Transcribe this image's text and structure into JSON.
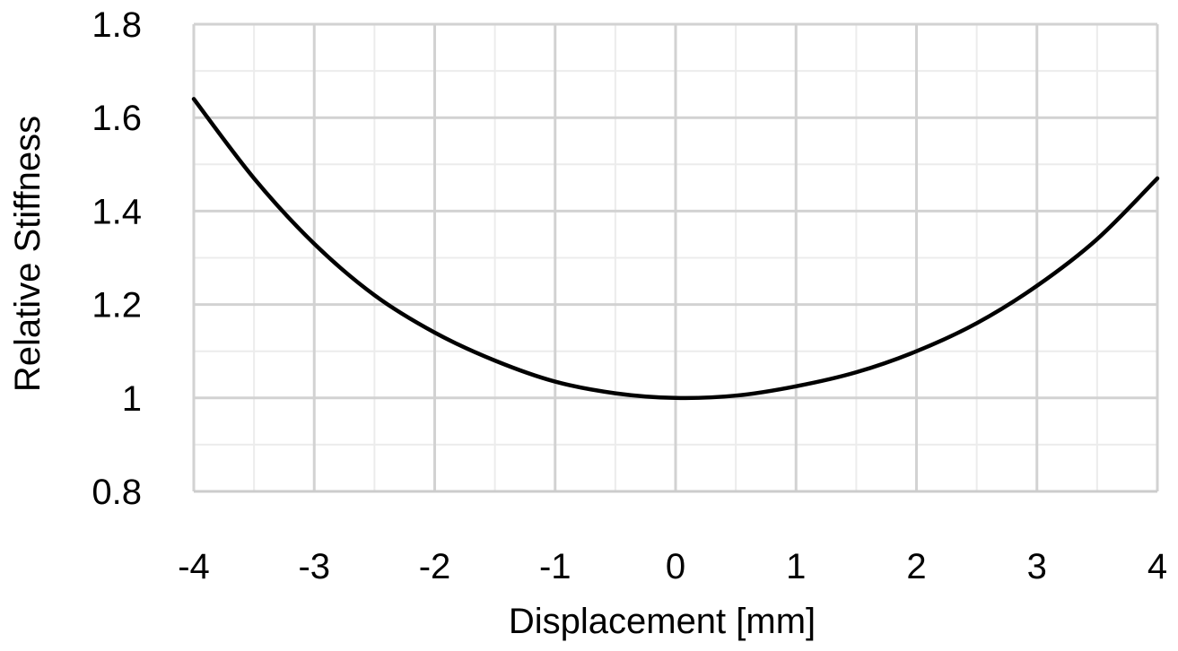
{
  "chart_data": {
    "type": "line",
    "title": "",
    "xlabel": "Displacement [mm]",
    "ylabel": "Relative Stiffness",
    "xlim": [
      -4,
      4
    ],
    "ylim": [
      0.8,
      1.8
    ],
    "x_ticks": [
      "-4",
      "-3",
      "-2",
      "-1",
      "0",
      "1",
      "2",
      "3",
      "4"
    ],
    "y_ticks": [
      "0.8",
      "1",
      "1.2",
      "1.4",
      "1.6",
      "1.8"
    ],
    "grid": true,
    "legend": "none",
    "series": [
      {
        "color": "#000000",
        "x": [
          -4.0,
          -3.5,
          -3.0,
          -2.5,
          -2.0,
          -1.5,
          -1.0,
          -0.5,
          0.0,
          0.5,
          1.0,
          1.5,
          2.0,
          2.5,
          3.0,
          3.5,
          4.0
        ],
        "y": [
          1.64,
          1.47,
          1.33,
          1.22,
          1.14,
          1.08,
          1.035,
          1.01,
          1.0,
          1.005,
          1.025,
          1.055,
          1.1,
          1.16,
          1.24,
          1.34,
          1.47
        ]
      }
    ]
  },
  "colors": {
    "grid_major": "#d2d2d2",
    "grid_minor": "#ececec",
    "axis_line": "#cccccc",
    "series": "#000000"
  }
}
